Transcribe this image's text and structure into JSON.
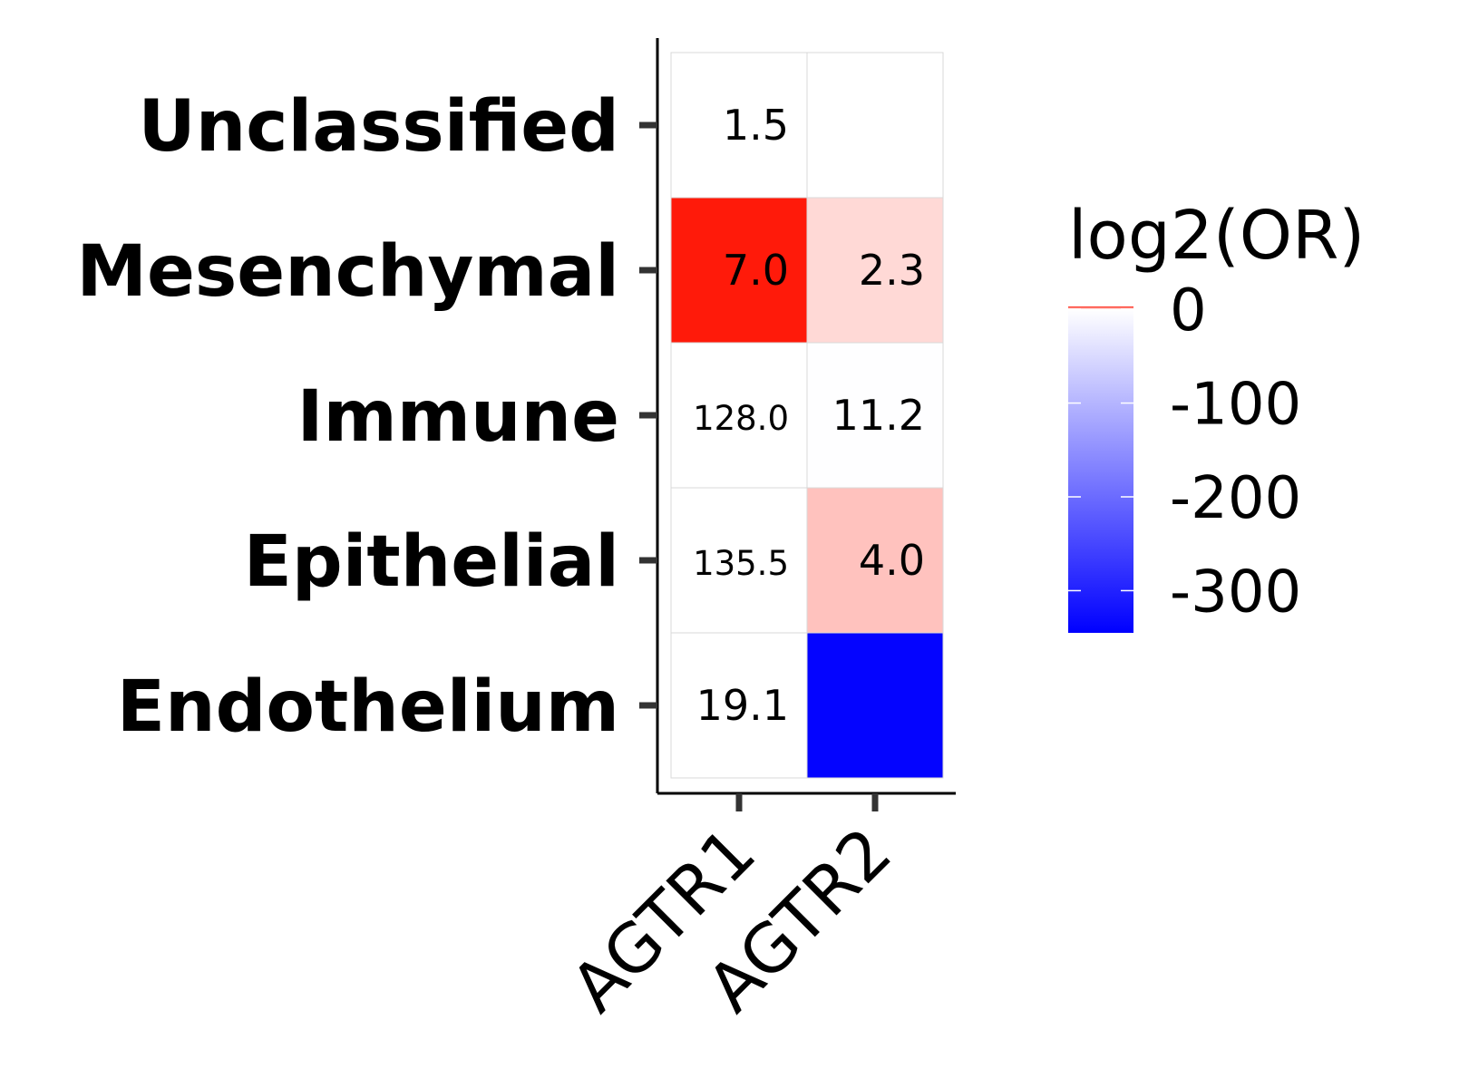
{
  "chart_data": {
    "type": "heatmap",
    "title": "",
    "xlabel": "",
    "ylabel": "",
    "rows": [
      "Unclassified",
      "Mesenchymal",
      "Immune",
      "Epithelial",
      "Endothelium"
    ],
    "columns": [
      "AGTR1",
      "AGTR2"
    ],
    "fill_values": [
      [
        0,
        0
      ],
      [
        3,
        0.5
      ],
      [
        0,
        -2
      ],
      [
        0,
        0.8
      ],
      [
        0,
        -340
      ]
    ],
    "cell_labels": [
      [
        "1.5",
        ""
      ],
      [
        "7.0",
        "2.3"
      ],
      [
        "128.0",
        "11.2"
      ],
      [
        "135.5",
        "4.0"
      ],
      [
        "19.1",
        ""
      ]
    ],
    "color_scale": {
      "title": "log2(OR)",
      "low_color": "#0000ff",
      "mid_color": "#ffffff",
      "high_color": "#ff1a0a",
      "range": [
        -345,
        3
      ],
      "ticks": [
        0,
        -100,
        -200,
        -300
      ],
      "tick_labels": [
        "0",
        "-100",
        "-200",
        "-300"
      ]
    }
  }
}
